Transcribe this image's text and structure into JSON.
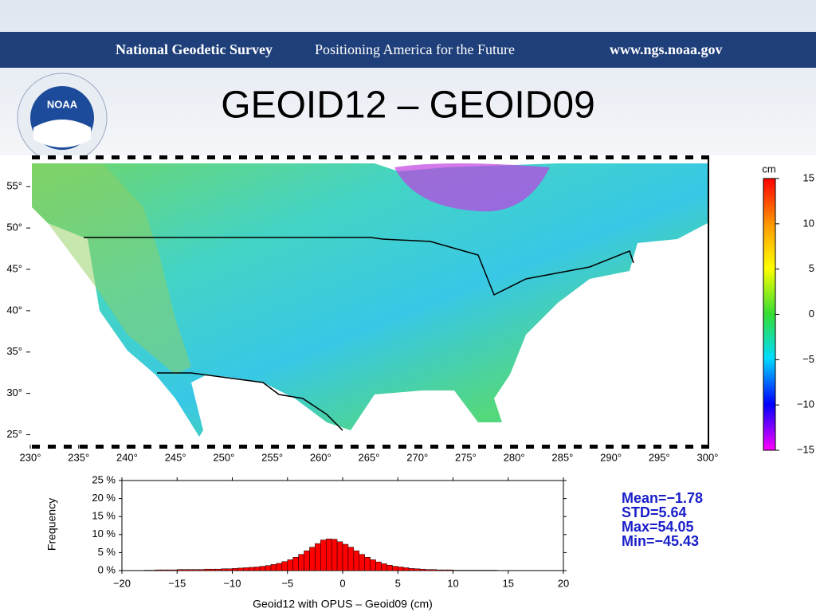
{
  "header": {
    "org": "National Geodetic Survey",
    "tagline": "Positioning America for the Future",
    "url": "www.ngs.noaa.gov",
    "logo": "NOAA"
  },
  "title": "GEOID12 – GEOID09",
  "map": {
    "xlim": [
      230,
      300
    ],
    "ylim": [
      23.8,
      58.3
    ],
    "xticks": [
      {
        "value": 230,
        "label": "230°"
      },
      {
        "value": 235,
        "label": "235°"
      },
      {
        "value": 240,
        "label": "240°"
      },
      {
        "value": 245,
        "label": "245°"
      },
      {
        "value": 250,
        "label": "250°"
      },
      {
        "value": 255,
        "label": "255°"
      },
      {
        "value": 260,
        "label": "260°"
      },
      {
        "value": 265,
        "label": "265°"
      },
      {
        "value": 270,
        "label": "270°"
      },
      {
        "value": 275,
        "label": "275°"
      },
      {
        "value": 280,
        "label": "280°"
      },
      {
        "value": 285,
        "label": "285°"
      },
      {
        "value": 290,
        "label": "290°"
      },
      {
        "value": 295,
        "label": "295°"
      },
      {
        "value": 300,
        "label": "300°"
      }
    ],
    "yticks": [
      {
        "value": 25,
        "label": "25°"
      },
      {
        "value": 30,
        "label": "30°"
      },
      {
        "value": 35,
        "label": "35°"
      },
      {
        "value": 40,
        "label": "40°"
      },
      {
        "value": 45,
        "label": "45°"
      },
      {
        "value": 50,
        "label": "50°"
      },
      {
        "value": 55,
        "label": "55°"
      }
    ]
  },
  "colorbar": {
    "unit": "cm",
    "lim": [
      -15,
      15
    ],
    "ticks": [
      15,
      10,
      5,
      0,
      {
        "value": -5,
        "label": "−5"
      },
      {
        "value": -10,
        "label": "−10"
      },
      {
        "value": -15,
        "label": "−15"
      }
    ]
  },
  "stats": [
    "Mean=−1.78",
    "STD=5.64",
    "Max=54.05",
    "Min=−45.43"
  ],
  "chart_data": {
    "type": "histogram",
    "x_label": "Geoid12 with OPUS  –  Geoid09 (cm)",
    "y_label": "Frequency",
    "color": "#ff0000",
    "bins": [
      -20,
      -19.5,
      -19,
      -18.5,
      -18,
      -17.5,
      -17,
      -16.5,
      -16,
      -15.5,
      -15,
      -14.5,
      -14,
      -13.5,
      -13,
      -12.5,
      -12,
      -11.5,
      -11,
      -10.5,
      -10,
      -9.5,
      -9,
      -8.5,
      -8,
      -7.5,
      -7,
      -6.5,
      -6,
      -5.5,
      -5,
      -4.5,
      -4,
      -3.5,
      -3,
      -2.5,
      -2,
      -1.5,
      -1,
      -0.5,
      0,
      0.5,
      1,
      1.5,
      2,
      2.5,
      3,
      3.5,
      4,
      4.5,
      5,
      5.5,
      6,
      6.5,
      7,
      7.5,
      8,
      8.5,
      9,
      9.5,
      10,
      10.5,
      11,
      11.5,
      12,
      12.5,
      13,
      13.5,
      14,
      14.5,
      15,
      15.5,
      16,
      16.5,
      17,
      17.5,
      18,
      18.5,
      19,
      19.5,
      20
    ],
    "values": [
      0,
      0,
      0,
      0,
      0.1,
      0.1,
      0.2,
      0.2,
      0.2,
      0.2,
      0.3,
      0.3,
      0.3,
      0.3,
      0.3,
      0.4,
      0.4,
      0.4,
      0.5,
      0.5,
      0.6,
      0.7,
      0.8,
      0.9,
      1.0,
      1.2,
      1.4,
      1.7,
      2.0,
      2.5,
      3.0,
      3.7,
      4.5,
      5.5,
      6.5,
      7.5,
      8.5,
      8.8,
      8.7,
      8.0,
      7.3,
      6.5,
      5.5,
      4.5,
      3.7,
      3.0,
      2.4,
      1.9,
      1.5,
      1.2,
      1.0,
      0.8,
      0.6,
      0.5,
      0.4,
      0.3,
      0.3,
      0.2,
      0.2,
      0.2,
      0.1,
      0.1,
      0.1,
      0.1,
      0.1,
      0.1,
      0.1,
      0.1,
      0,
      0,
      0,
      0,
      0,
      0,
      0,
      0,
      0,
      0,
      0,
      0
    ],
    "xlim": [
      -20,
      20
    ],
    "ylim": [
      0,
      25
    ],
    "xticks": [
      {
        "value": -20,
        "label": "−20"
      },
      {
        "value": -15,
        "label": "−15"
      },
      {
        "value": -10,
        "label": "−10"
      },
      {
        "value": -5,
        "label": "−5"
      },
      0,
      5,
      10,
      15,
      20
    ],
    "yticks": [
      {
        "value": 0,
        "label": "0 %"
      },
      {
        "value": 5,
        "label": "5 %"
      },
      {
        "value": 10,
        "label": "10 %"
      },
      {
        "value": 15,
        "label": "15 %"
      },
      {
        "value": 20,
        "label": "20 %"
      },
      {
        "value": 25,
        "label": "25 %"
      }
    ]
  }
}
